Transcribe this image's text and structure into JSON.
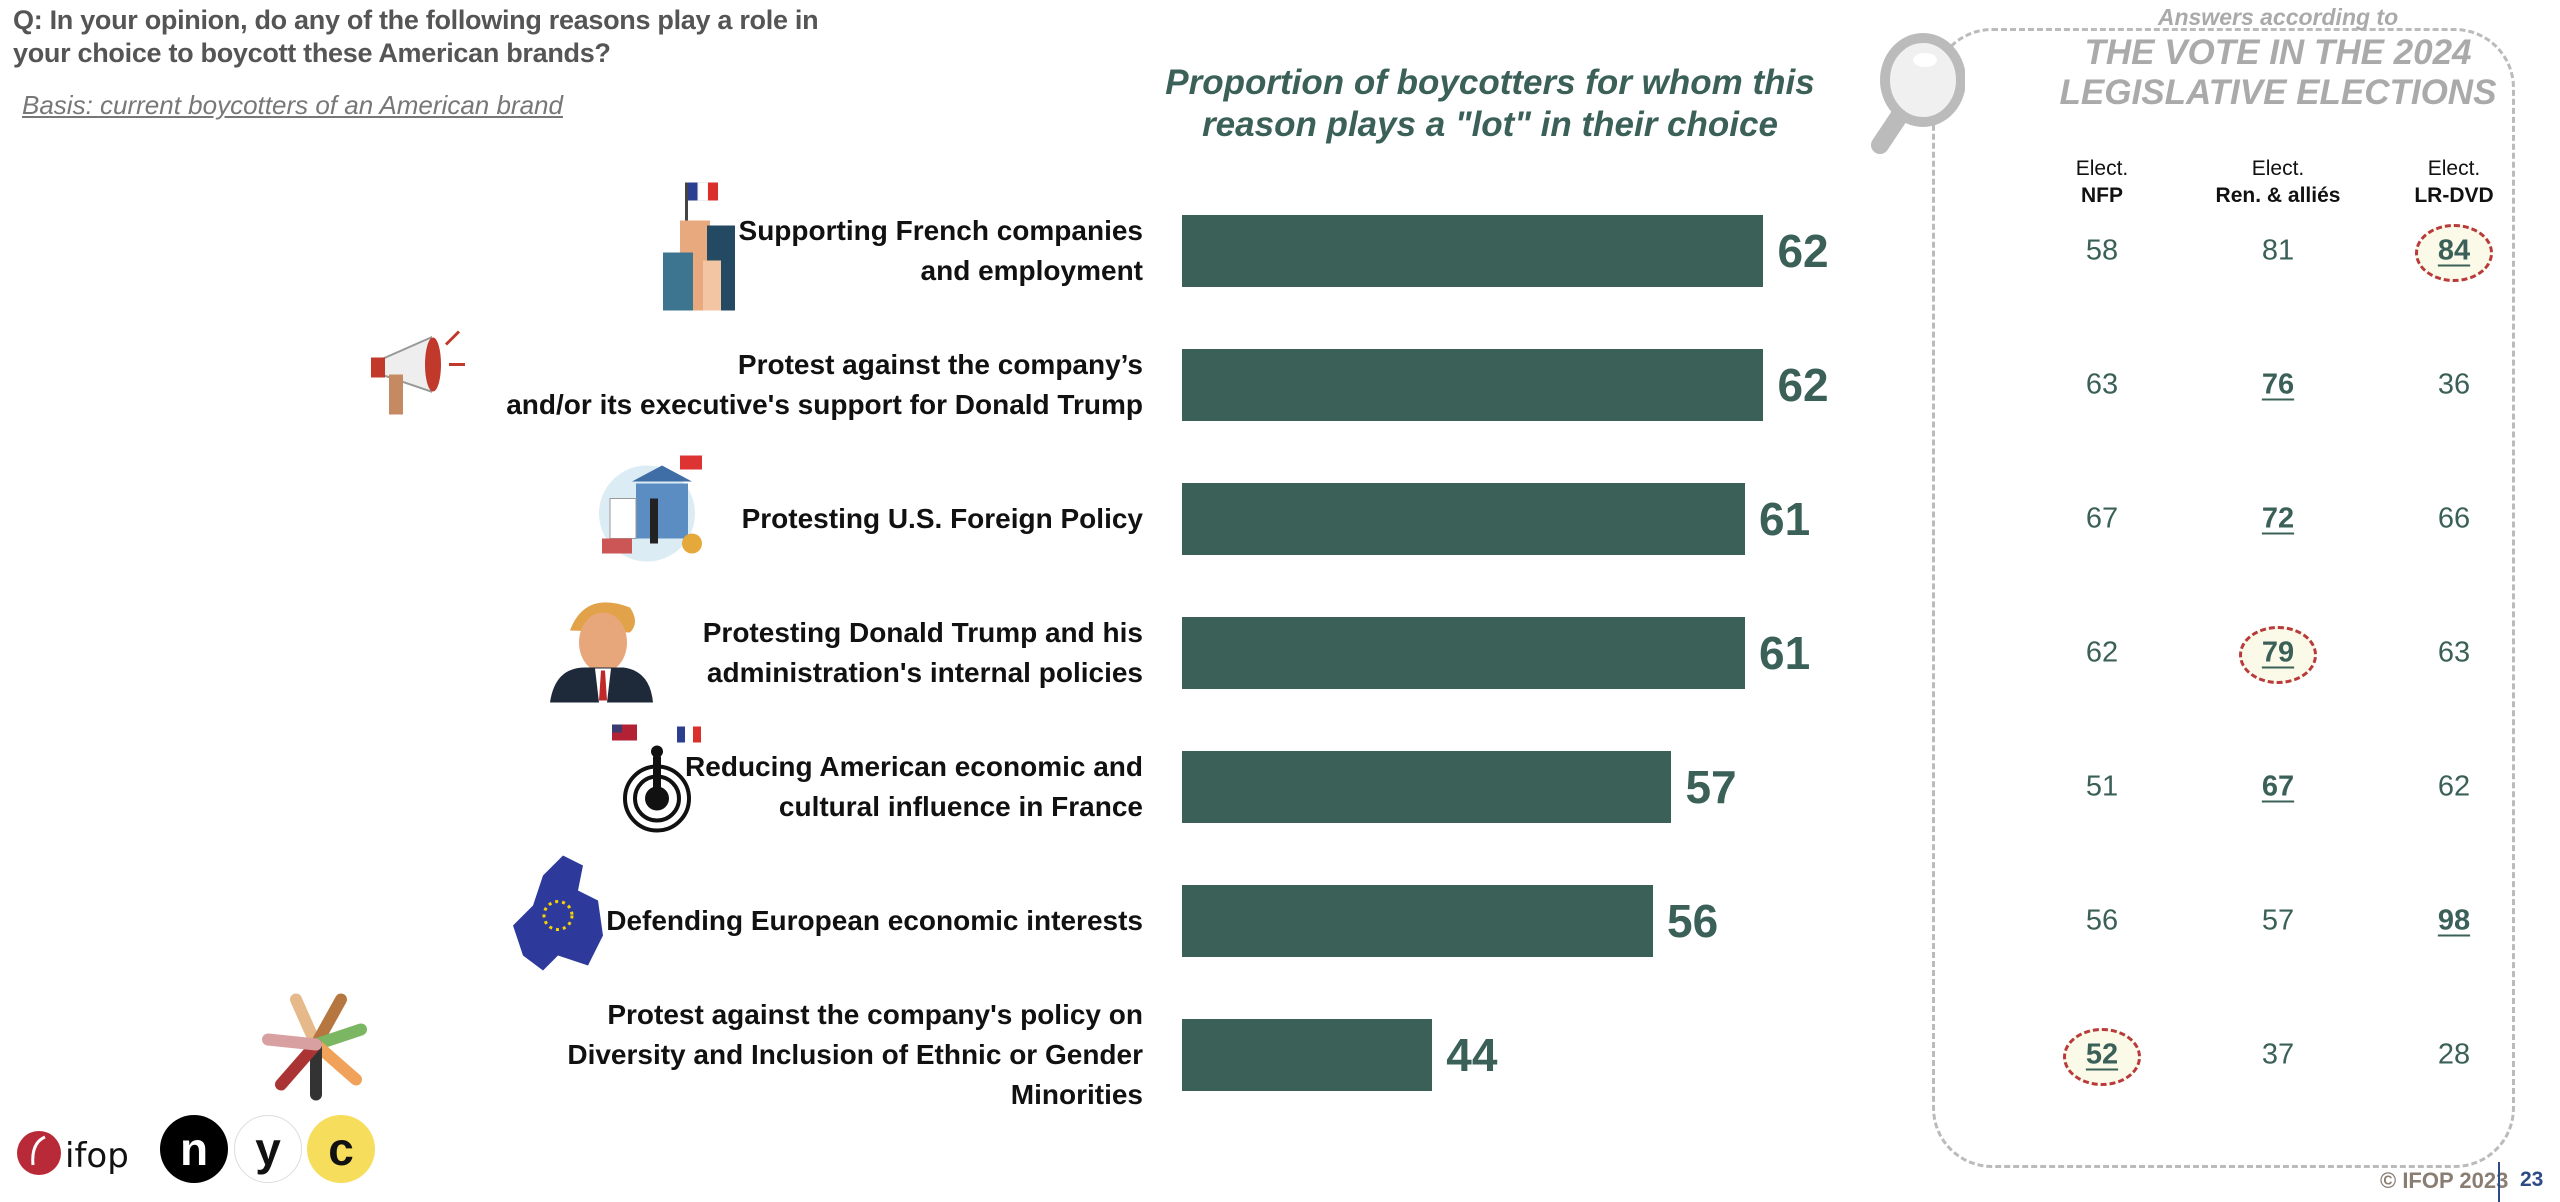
{
  "question": {
    "line1": "Q: In your opinion, do any of the following reasons play a role in",
    "line2": "your choice to boycott these American brands?",
    "basis": "Basis: current boycotters of an American brand"
  },
  "chart_data": {
    "type": "bar",
    "orientation": "horizontal",
    "title_line1": "Proportion of boycotters for whom this",
    "title_line2": "reason plays a \"lot\" in their choice",
    "categories": [
      [
        "Supporting French companies",
        "and employment"
      ],
      [
        "Protest against the company’s",
        "and/or its executive's support for Donald Trump"
      ],
      [
        "Protesting U.S. Foreign Policy"
      ],
      [
        "Protesting Donald Trump and his",
        "administration's internal policies"
      ],
      [
        "Reducing American economic and",
        "cultural influence in France"
      ],
      [
        "Defending European economic interests"
      ],
      [
        "Protest against the company's policy on",
        "Diversity and Inclusion of Ethnic or Gender Minorities"
      ]
    ],
    "values": [
      62,
      62,
      61,
      61,
      57,
      56,
      44
    ],
    "icons": [
      "buildings-french-flag-icon",
      "megaphone-icon",
      "government-building-us-flag-icon",
      "trump-portrait-icon",
      "target-flags-icon",
      "europe-map-icon",
      "diverse-hands-icon"
    ],
    "bar_color": "#3b6058"
  },
  "panel": {
    "header_small": "Answers according to",
    "header_line1": "THE VOTE IN THE 2024",
    "header_line2": "LEGISLATIVE ELECTIONS",
    "columns": [
      {
        "top": "Elect.",
        "bottom": "NFP"
      },
      {
        "top": "Elect.",
        "bottom": "Ren. & alliés"
      },
      {
        "top": "Elect.",
        "bottom": "LR-DVD"
      }
    ],
    "rows": [
      [
        {
          "v": "58"
        },
        {
          "v": "81"
        },
        {
          "v": "84",
          "hi": true,
          "circled": true
        }
      ],
      [
        {
          "v": "63"
        },
        {
          "v": "76",
          "hi": true
        },
        {
          "v": "36"
        }
      ],
      [
        {
          "v": "67"
        },
        {
          "v": "72",
          "hi": true
        },
        {
          "v": "66"
        }
      ],
      [
        {
          "v": "62"
        },
        {
          "v": "79",
          "hi": true,
          "circled": true
        },
        {
          "v": "63"
        }
      ],
      [
        {
          "v": "51"
        },
        {
          "v": "67",
          "hi": true
        },
        {
          "v": "62"
        }
      ],
      [
        {
          "v": "56"
        },
        {
          "v": "57"
        },
        {
          "v": "98",
          "hi": true
        }
      ],
      [
        {
          "v": "52",
          "hi": true,
          "circled": true
        },
        {
          "v": "37"
        },
        {
          "v": "28"
        }
      ]
    ],
    "highlight_circle_color": "#b83a3a"
  },
  "footer": {
    "copyright": "© IFOP 2023",
    "page_number": "23",
    "logos": [
      "ifop",
      "n",
      "y",
      "c"
    ]
  }
}
